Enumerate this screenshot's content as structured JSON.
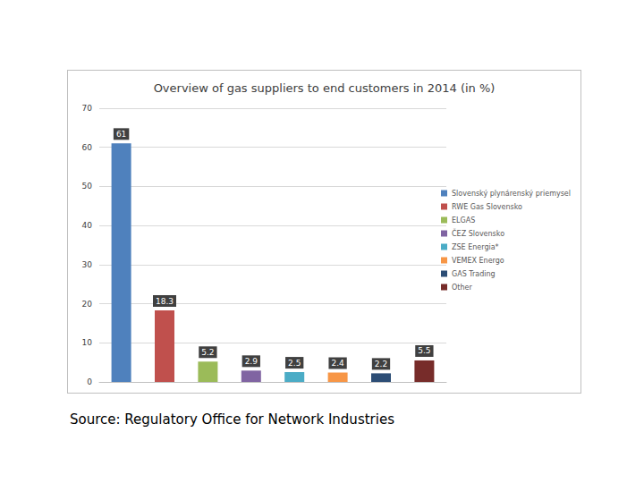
{
  "chart_data": {
    "type": "bar",
    "title": "Overview of gas suppliers to end customers in 2014 (in %)",
    "source": "Source: Regulatory Office for Network Industries",
    "categories": [
      null
    ],
    "series": [
      {
        "name": "Slovenský plynárenský priemysel",
        "color": "#4f81bd",
        "values": [
          61
        ]
      },
      {
        "name": "RWE Gas Slovensko",
        "color": "#c0504d",
        "values": [
          18.3
        ]
      },
      {
        "name": "ELGAS",
        "color": "#9bbb59",
        "values": [
          5.2
        ]
      },
      {
        "name": "ČEZ Slovensko",
        "color": "#8064a2",
        "values": [
          2.9
        ]
      },
      {
        "name": "ZSE Energia*",
        "color": "#4bacc6",
        "values": [
          2.5
        ]
      },
      {
        "name": "VEMEX Energo",
        "color": "#f79646",
        "values": [
          2.4
        ]
      },
      {
        "name": "GAS Trading",
        "color": "#2c4d75",
        "values": [
          2.2
        ]
      },
      {
        "name": "Other",
        "color": "#772c2a",
        "values": [
          5.5
        ]
      }
    ],
    "ylim": [
      0,
      70
    ],
    "yticks": [
      0,
      10,
      20,
      30,
      40,
      50,
      60,
      70
    ],
    "grid": true,
    "legend": "right",
    "data_labels": true,
    "tick_labels": "y"
  }
}
